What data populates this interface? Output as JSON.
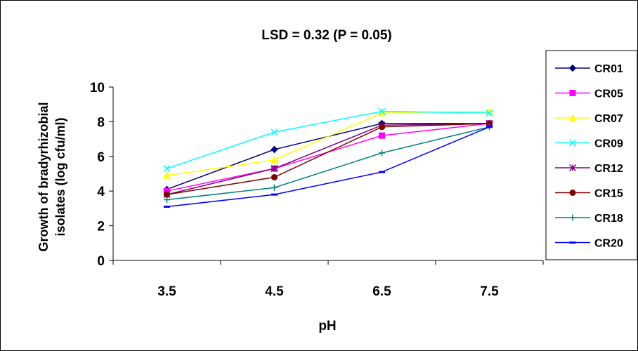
{
  "chart_data": {
    "type": "line",
    "title": "LSD = 0.32 (P = 0.05)",
    "xlabel": "pH",
    "ylabel_line1": "Growth of bradyrhizobial",
    "ylabel_line2": "isolates (log cfu/ml)",
    "categories": [
      "3.5",
      "4.5",
      "6.5",
      "7.5"
    ],
    "ylim": [
      0,
      10
    ],
    "yticks": [
      "0",
      "2",
      "4",
      "6",
      "8",
      "10"
    ],
    "grid": false,
    "legend_position": "right",
    "series": [
      {
        "name": "CR01",
        "color": "#00007F",
        "marker": "diamond",
        "values": [
          4.1,
          6.4,
          7.9,
          7.9
        ]
      },
      {
        "name": "CR05",
        "color": "#FF00FF",
        "marker": "square",
        "values": [
          4.0,
          5.3,
          7.2,
          7.9
        ]
      },
      {
        "name": "CR07",
        "color": "#FFFF00",
        "marker": "triangle",
        "values": [
          4.9,
          5.8,
          8.5,
          8.6
        ]
      },
      {
        "name": "CR09",
        "color": "#00FFFF",
        "marker": "x",
        "values": [
          5.3,
          7.4,
          8.6,
          8.5
        ]
      },
      {
        "name": "CR12",
        "color": "#7F007F",
        "marker": "asterisk",
        "values": [
          3.8,
          5.3,
          7.8,
          7.9
        ]
      },
      {
        "name": "CR15",
        "color": "#800000",
        "marker": "circle",
        "values": [
          3.8,
          4.8,
          7.7,
          7.9
        ]
      },
      {
        "name": "CR18",
        "color": "#008080",
        "marker": "plus",
        "values": [
          3.5,
          4.2,
          6.2,
          7.7
        ]
      },
      {
        "name": "CR20",
        "color": "#0000FF",
        "marker": "dash",
        "values": [
          3.1,
          3.8,
          5.1,
          7.7
        ]
      }
    ]
  }
}
